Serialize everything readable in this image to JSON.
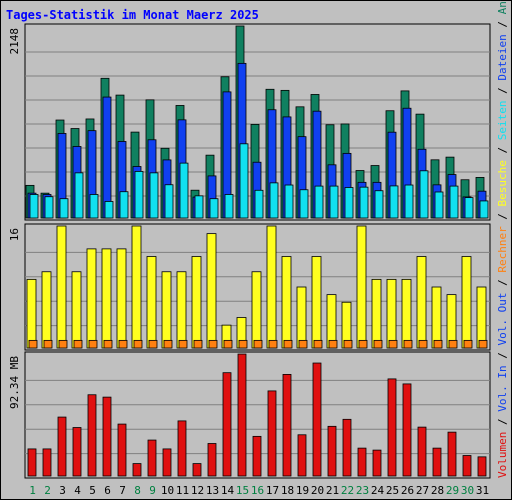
{
  "chart_data": {
    "type": "bar",
    "title": "Tages-Statistik im Monat Maerz 2025",
    "categories": [
      "1",
      "2",
      "3",
      "4",
      "5",
      "6",
      "7",
      "8",
      "9",
      "10",
      "11",
      "12",
      "13",
      "14",
      "15",
      "16",
      "17",
      "18",
      "19",
      "20",
      "21",
      "22",
      "23",
      "24",
      "25",
      "26",
      "27",
      "28",
      "29",
      "30",
      "31"
    ],
    "weekend_days": [
      "1",
      "2",
      "8",
      "9",
      "15",
      "16",
      "22",
      "23",
      "29",
      "30"
    ],
    "colors": {
      "background": "#c0c0c0",
      "plot_bg": "#c0c0c0",
      "title": "#0000ff",
      "grid": "#808080",
      "day_normal": "#000000",
      "day_weekend": "#008040",
      "anfragen": "#108060",
      "dateien": "#1040f0",
      "seiten": "#10e0f0",
      "besuche": "#ffff20",
      "rechner": "#ff8010",
      "volumen": "#e01010"
    },
    "panels": [
      {
        "name": "top",
        "max_label": "2148",
        "max": 2148,
        "series": [
          {
            "key": "anfragen",
            "name": "Anfragen",
            "color": "#108060",
            "values": [
              365,
              278,
              1096,
              1001,
              1108,
              1563,
              1375,
              961,
              1322,
              780,
              1259,
              311,
              703,
              1580,
              2148,
              1047,
              1440,
              1428,
              1244,
              1382,
              1043,
              1052,
              531,
              587,
              1200,
              1422,
              1162,
              651,
              681,
              428,
              454
            ]
          },
          {
            "key": "dateien",
            "name": "Dateien",
            "color": "#1040f0",
            "values": [
              278,
              263,
              946,
              800,
              977,
              1353,
              856,
              576,
              875,
              650,
              1098,
              234,
              471,
              1411,
              1730,
              624,
              1211,
              1131,
              910,
              1195,
              595,
              723,
              399,
              399,
              960,
              1228,
              769,
              371,
              486,
              236,
              300
            ]
          },
          {
            "key": "seiten",
            "name": "Seiten",
            "color": "#10e0f0",
            "values": [
              263,
              238,
              216,
              505,
              263,
              185,
              294,
              521,
              505,
              372,
              614,
              248,
              216,
              263,
              830,
              310,
              393,
              369,
              316,
              357,
              357,
              341,
              345,
              305,
              359,
              369,
              528,
              291,
              357,
              228,
              191
            ]
          }
        ]
      },
      {
        "name": "middle",
        "max_label": "16",
        "max": 16,
        "series": [
          {
            "key": "besuche",
            "name": "Besuche",
            "color": "#ffff20",
            "values": [
              9,
              10,
              16,
              10,
              13,
              13,
              13,
              16,
              12,
              10,
              10,
              12,
              15,
              3,
              4,
              10,
              16,
              12,
              8,
              12,
              7,
              6,
              16,
              9,
              9,
              9,
              12,
              8,
              7,
              12,
              8
            ]
          },
          {
            "key": "rechner",
            "name": "Rechner",
            "color": "#ff8010",
            "values": [
              1,
              1,
              1,
              1,
              1,
              1,
              1,
              1,
              1,
              1,
              1,
              1,
              1,
              1,
              1,
              1,
              1,
              1,
              1,
              1,
              1,
              1,
              1,
              1,
              1,
              1,
              1,
              1,
              1,
              1,
              1
            ]
          }
        ]
      },
      {
        "name": "bottom",
        "max_label": "92.34 MB",
        "max": 92.34,
        "series": [
          {
            "key": "volumen",
            "name": "Volumen",
            "color": "#e01010",
            "values": [
              20.5,
              20.5,
              44.6,
              36.7,
              61.5,
              59.7,
              39.3,
              9.4,
              27.2,
              20.5,
              41.7,
              9.4,
              24.6,
              78.2,
              92.3,
              30.0,
              64.4,
              76.9,
              31.2,
              85.5,
              37.6,
              42.9,
              21.1,
              19.6,
              73.5,
              69.7,
              37.0,
              21.1,
              33.2,
              15.5,
              14.5
            ]
          }
        ]
      }
    ],
    "right_label_segments": [
      {
        "text": "Volumen",
        "color": "#e01010"
      },
      {
        "text": " / ",
        "color": "#000000"
      },
      {
        "text": "Vol. In",
        "color": "#1040f0"
      },
      {
        "text": " / ",
        "color": "#000000"
      },
      {
        "text": "Vol. Out",
        "color": "#1040f0"
      },
      {
        "text": " / ",
        "color": "#000000"
      },
      {
        "text": "Rechner",
        "color": "#ff8010"
      },
      {
        "text": " / ",
        "color": "#000000"
      },
      {
        "text": "Besuche",
        "color": "#ffff20"
      },
      {
        "text": " / ",
        "color": "#000000"
      },
      {
        "text": "Seiten",
        "color": "#10e0f0"
      },
      {
        "text": " / ",
        "color": "#000000"
      },
      {
        "text": "Dateien",
        "color": "#1040f0"
      },
      {
        "text": " / ",
        "color": "#000000"
      },
      {
        "text": "Anfragen",
        "color": "#108060"
      }
    ]
  }
}
